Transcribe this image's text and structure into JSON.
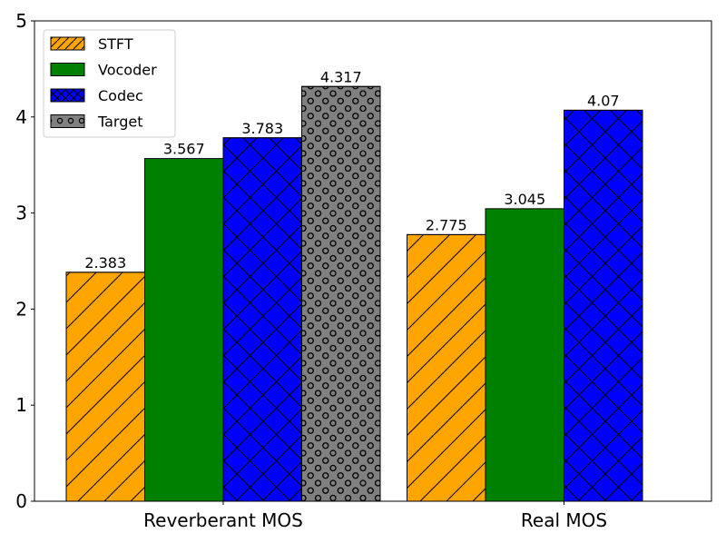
{
  "chart_data": {
    "type": "bar",
    "categories": [
      "Reverberant MOS",
      "Real MOS"
    ],
    "series": [
      {
        "name": "STFT",
        "values": [
          2.383,
          2.775
        ],
        "labels": [
          "2.383",
          "2.775"
        ],
        "color": "#ffa500",
        "hatch": "diagonal"
      },
      {
        "name": "Vocoder",
        "values": [
          3.567,
          3.045
        ],
        "labels": [
          "3.567",
          "3.045"
        ],
        "color": "#008000",
        "hatch": "none"
      },
      {
        "name": "Codec",
        "values": [
          3.783,
          4.07
        ],
        "labels": [
          "3.783",
          "4.07"
        ],
        "color": "#0000ff",
        "hatch": "crosshatch"
      },
      {
        "name": "Target",
        "values": [
          4.317,
          null
        ],
        "labels": [
          "4.317",
          ""
        ],
        "color": "#808080",
        "hatch": "circles"
      }
    ],
    "ylim": [
      0,
      5
    ],
    "yticks": [
      "0",
      "1",
      "2",
      "3",
      "4",
      "5"
    ],
    "legend_position": "top-left",
    "grid": false,
    "title": "",
    "xlabel": "",
    "ylabel": ""
  }
}
